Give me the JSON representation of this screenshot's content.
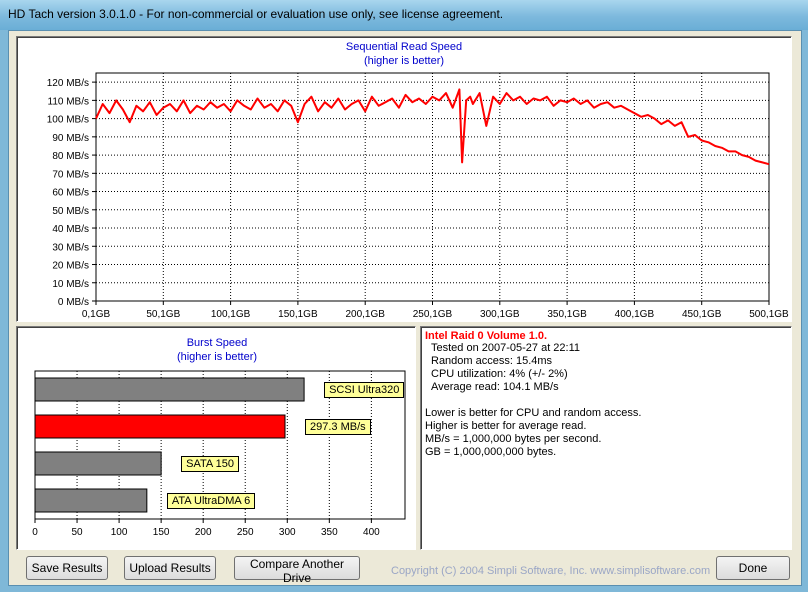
{
  "window": {
    "title": "HD Tach version 3.0.1.0  - For non-commercial or evaluation use only, see license agreement."
  },
  "sequential": {
    "title": "Sequential Read Speed",
    "subtitle": "(higher is better)"
  },
  "burst": {
    "title": "Burst Speed",
    "subtitle": "(higher is better)"
  },
  "chart_data": [
    {
      "type": "line",
      "title": "Sequential Read Speed",
      "subtitle": "(higher is better)",
      "xlabel": "",
      "ylabel": "",
      "x_ticks": [
        "0,1GB",
        "50,1GB",
        "100,1GB",
        "150,1GB",
        "200,1GB",
        "250,1GB",
        "300,1GB",
        "350,1GB",
        "400,1GB",
        "450,1GB",
        "500,1GB"
      ],
      "y_ticks": [
        "0 MB/s",
        "10 MB/s",
        "20 MB/s",
        "30 MB/s",
        "40 MB/s",
        "50 MB/s",
        "60 MB/s",
        "70 MB/s",
        "80 MB/s",
        "90 MB/s",
        "100 MB/s",
        "110 MB/s",
        "120 MB/s"
      ],
      "xlim": [
        0,
        500
      ],
      "ylim": [
        0,
        125
      ],
      "grid": true,
      "series_color": "#ff0000",
      "x": [
        0,
        5,
        10,
        15,
        20,
        25,
        30,
        35,
        40,
        45,
        50,
        55,
        60,
        65,
        70,
        75,
        80,
        85,
        90,
        95,
        100,
        105,
        110,
        115,
        120,
        125,
        130,
        135,
        140,
        145,
        150,
        155,
        160,
        165,
        170,
        175,
        180,
        185,
        190,
        195,
        200,
        205,
        210,
        215,
        220,
        225,
        230,
        235,
        240,
        245,
        250,
        255,
        260,
        265,
        270,
        272,
        275,
        278,
        280,
        285,
        290,
        295,
        300,
        305,
        310,
        315,
        320,
        325,
        330,
        335,
        340,
        345,
        350,
        355,
        360,
        365,
        370,
        375,
        380,
        385,
        390,
        395,
        400,
        405,
        410,
        415,
        420,
        425,
        430,
        435,
        440,
        445,
        450,
        455,
        460,
        465,
        470,
        475,
        480,
        485,
        490,
        495,
        500
      ],
      "y": [
        100,
        108,
        103,
        110,
        105,
        98,
        107,
        104,
        109,
        102,
        106,
        108,
        104,
        110,
        103,
        107,
        105,
        109,
        106,
        108,
        104,
        110,
        107,
        105,
        111,
        106,
        108,
        104,
        110,
        107,
        98,
        108,
        112,
        104,
        109,
        106,
        111,
        105,
        108,
        110,
        104,
        112,
        107,
        109,
        111,
        106,
        113,
        109,
        111,
        108,
        112,
        110,
        114,
        106,
        116,
        76,
        110,
        112,
        108,
        114,
        96,
        112,
        108,
        114,
        110,
        112,
        108,
        111,
        110,
        112,
        107,
        110,
        109,
        111,
        108,
        110,
        106,
        108,
        109,
        106,
        107,
        105,
        103,
        101,
        102,
        100,
        97,
        99,
        96,
        98,
        90,
        91,
        88,
        87,
        85,
        84,
        82,
        82,
        80,
        79,
        77,
        76,
        75
      ]
    },
    {
      "type": "bar",
      "orientation": "horizontal",
      "title": "Burst Speed",
      "subtitle": "(higher is better)",
      "categories": [
        "SCSI Ultra320",
        "297.3 MB/s",
        "SATA 150",
        "ATA UltraDMA 6"
      ],
      "values": [
        320,
        297.3,
        150,
        133
      ],
      "colors": [
        "#808080",
        "#ff0000",
        "#808080",
        "#808080"
      ],
      "x_ticks": [
        "0",
        "50",
        "100",
        "150",
        "200",
        "250",
        "300",
        "350",
        "400"
      ],
      "xlim": [
        0,
        440
      ],
      "grid": true
    }
  ],
  "info": {
    "heading": "Intel Raid 0 Volume 1.0.",
    "lines": [
      "Tested on 2007-05-27 at 22:11",
      "Random access: 15.4ms",
      "CPU utilization: 4% (+/- 2%)",
      "Average read: 104.1 MB/s"
    ],
    "notes": [
      "Lower is better for CPU and random access.",
      "Higher is better for average read.",
      "MB/s = 1,000,000 bytes per second.",
      "GB = 1,000,000,000 bytes."
    ]
  },
  "buttons": {
    "save": "Save Results",
    "upload": "Upload Results",
    "compare": "Compare Another Drive",
    "done": "Done"
  },
  "copyright": "Copyright (C) 2004 Simpli Software, Inc. www.simplisoftware.com"
}
